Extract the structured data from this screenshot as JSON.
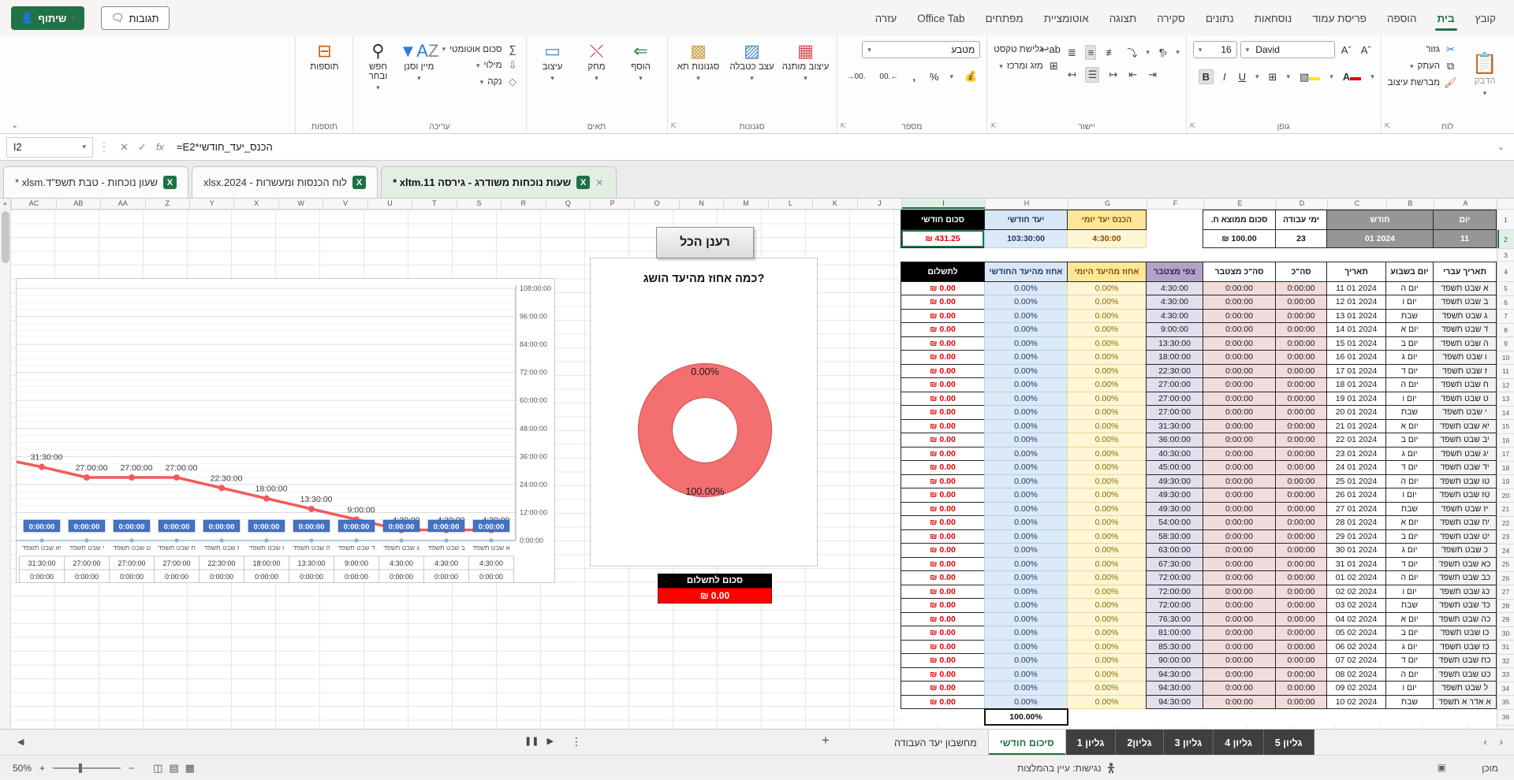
{
  "titlebar": {
    "share_label": "שיתוף",
    "comments_label": "תגובות",
    "tabs": [
      "קובץ",
      "בית",
      "הוספה",
      "פריסת עמוד",
      "נוסחאות",
      "נתונים",
      "סקירה",
      "תצוגה",
      "אוטומציית",
      "מפתחים",
      "Office Tab",
      "עזרה"
    ],
    "active_tab": "בית"
  },
  "ribbon": {
    "paste": "הדבק",
    "cut": "גזור",
    "copy": "העתק",
    "format_painter": "מברשת עיצוב",
    "clipboard_group": "לוח",
    "font_name": "David",
    "font_size": "16",
    "font_group": "גופן",
    "wrap_text": "גלישת טקסט",
    "merge_center": "מזג ומרכז",
    "align_group": "יישור",
    "number_format": "מטבע",
    "number_group": "מספר",
    "cond_format": "עיצוב מותנה",
    "format_table": "עצב כטבלה",
    "cell_styles": "סגנונות תא",
    "styles_group": "סגנונות",
    "insert": "הוסף",
    "delete": "מחק",
    "format": "עיצוב",
    "cells_group": "תאים",
    "autosum": "סכום אוטומטי",
    "fill": "מילוי",
    "clear": "נקה",
    "sort_filter": "מיין וסנן",
    "find_select": "חפש ובחר",
    "editing_group": "עריכה",
    "addins": "תוספות",
    "addins_group": "תוספות"
  },
  "formula_bar": {
    "name_box": "I2",
    "formula": "=E2*הכנס_יעד_חודשי"
  },
  "doc_tabs": [
    {
      "label": "שעון נוכחות - טבת תשפ\"ד.xlsm *",
      "active": false
    },
    {
      "label": "לוח הכנסות ומעשרות - 2024.xlsx",
      "active": false
    },
    {
      "label": "שעות נוכחות משודרג - גירסה 11.xltm *",
      "active": true
    }
  ],
  "sheet": {
    "selected_cell": "I2",
    "summary": {
      "monthly_sum_label": "סכום חודשי",
      "monthly_sum": "₪ 431.25",
      "monthly_target_label": "יעד חודשי",
      "monthly_target": "103:30:00",
      "daily_target_label": "הכנס יעד יומי",
      "daily_target": "4:30:00",
      "avg_label": "סכום ממוצא ח.",
      "avg": "₪ 100.00",
      "workdays_label": "ימי עבודה",
      "workdays": "23",
      "month_label": "חודש",
      "month": "01 2024",
      "day_label": "יום",
      "day": "11"
    },
    "table": {
      "headers": {
        "pay": "לתשלום",
        "pct_month": "אחוז מהיעד החודשי",
        "pct_day": "אחוז מהיעד היומי",
        "forecast": "צפי מצטבר",
        "cum": "סה\"כ מצטבר",
        "total": "סה\"כ",
        "date": "תאריך",
        "dow": "יום בשבוע",
        "heb": "תאריך עברי"
      },
      "row_defaults": {
        "pay": "₪ 0.00",
        "pct_month": "0.00%",
        "pct_day": "0.00%",
        "cum": "0:00:00",
        "total": "0:00:00"
      },
      "rows": [
        {
          "date": "11 01 2024",
          "dow": "יום ה",
          "heb": "א שבט תשפד",
          "forecast": "4:30:00"
        },
        {
          "date": "12 01 2024",
          "dow": "יום ו",
          "heb": "ב שבט תשפד",
          "forecast": "4:30:00"
        },
        {
          "date": "13 01 2024",
          "dow": "שבת",
          "heb": "ג שבט תשפד",
          "forecast": "4:30:00"
        },
        {
          "date": "14 01 2024",
          "dow": "יום א",
          "heb": "ד שבט תשפד",
          "forecast": "9:00:00"
        },
        {
          "date": "15 01 2024",
          "dow": "יום ב",
          "heb": "ה שבט תשפד",
          "forecast": "13:30:00"
        },
        {
          "date": "16 01 2024",
          "dow": "יום ג",
          "heb": "ו שבט תשפד",
          "forecast": "18:00:00"
        },
        {
          "date": "17 01 2024",
          "dow": "יום ד",
          "heb": "ז שבט תשפד",
          "forecast": "22:30:00"
        },
        {
          "date": "18 01 2024",
          "dow": "יום ה",
          "heb": "ח שבט תשפד",
          "forecast": "27:00:00"
        },
        {
          "date": "19 01 2024",
          "dow": "יום ו",
          "heb": "ט שבט תשפד",
          "forecast": "27:00:00"
        },
        {
          "date": "20 01 2024",
          "dow": "שבת",
          "heb": "י שבט תשפד",
          "forecast": "27:00:00"
        },
        {
          "date": "21 01 2024",
          "dow": "יום א",
          "heb": "יא שבט תשפד",
          "forecast": "31:30:00"
        },
        {
          "date": "22 01 2024",
          "dow": "יום ב",
          "heb": "יב שבט תשפד",
          "forecast": "36:00:00"
        },
        {
          "date": "23 01 2024",
          "dow": "יום ג",
          "heb": "יג שבט תשפד",
          "forecast": "40:30:00"
        },
        {
          "date": "24 01 2024",
          "dow": "יום ד",
          "heb": "יד שבט תשפד",
          "forecast": "45:00:00"
        },
        {
          "date": "25 01 2024",
          "dow": "יום ה",
          "heb": "טו שבט תשפד",
          "forecast": "49:30:00"
        },
        {
          "date": "26 01 2024",
          "dow": "יום ו",
          "heb": "טז שבט תשפד",
          "forecast": "49:30:00"
        },
        {
          "date": "27 01 2024",
          "dow": "שבת",
          "heb": "יז שבט תשפד",
          "forecast": "49:30:00"
        },
        {
          "date": "28 01 2024",
          "dow": "יום א",
          "heb": "יח שבט תשפד",
          "forecast": "54:00:00"
        },
        {
          "date": "29 01 2024",
          "dow": "יום ב",
          "heb": "יט שבט תשפד",
          "forecast": "58:30:00"
        },
        {
          "date": "30 01 2024",
          "dow": "יום ג",
          "heb": "כ שבט תשפד",
          "forecast": "63:00:00"
        },
        {
          "date": "31 01 2024",
          "dow": "יום ד",
          "heb": "כא שבט תשפד",
          "forecast": "67:30:00"
        },
        {
          "date": "01 02 2024",
          "dow": "יום ה",
          "heb": "כב שבט תשפד",
          "forecast": "72:00:00"
        },
        {
          "date": "02 02 2024",
          "dow": "יום ו",
          "heb": "כג שבט תשפד",
          "forecast": "72:00:00"
        },
        {
          "date": "03 02 2024",
          "dow": "שבת",
          "heb": "כד שבט תשפד",
          "forecast": "72:00:00"
        },
        {
          "date": "04 02 2024",
          "dow": "יום א",
          "heb": "כה שבט תשפד",
          "forecast": "76:30:00"
        },
        {
          "date": "05 02 2024",
          "dow": "יום ב",
          "heb": "כו שבט תשפד",
          "forecast": "81:00:00"
        },
        {
          "date": "06 02 2024",
          "dow": "יום ג",
          "heb": "כז שבט תשפד",
          "forecast": "85:30:00"
        },
        {
          "date": "07 02 2024",
          "dow": "יום ד",
          "heb": "כח שבט תשפד",
          "forecast": "90:00:00"
        },
        {
          "date": "08 02 2024",
          "dow": "יום ה",
          "heb": "כט שבט תשפד",
          "forecast": "94:30:00"
        },
        {
          "date": "09 02 2024",
          "dow": "יום ו",
          "heb": "ל שבט תשפד",
          "forecast": "94:30:00"
        },
        {
          "date": "10 02 2024",
          "dow": "שבת",
          "heb": "א אדר א תשפד",
          "forecast": "94:30:00"
        }
      ],
      "footer_pct": "100.00%"
    },
    "refresh_button": "רענן הכל",
    "pay_box": {
      "label": "סכום לתשלום",
      "value": "₪ 0.00"
    }
  },
  "chart_data": [
    {
      "type": "line",
      "title": "",
      "categories": [
        "יא שבט תשפד",
        "י שבט תשפד",
        "ט שבט תשפד",
        "ח שבט תשפד",
        "ז שבט תשפד",
        "ו שבט תשפד",
        "ה שבט תשפד",
        "ד שבט תשפד",
        "ג שבט תשפד",
        "ב שבט תשפד",
        "א שבט תשפד"
      ],
      "series": [
        {
          "name": "צפי מצטבר",
          "color": "#F25A5A",
          "values_hours": [
            31.5,
            27,
            27,
            27,
            22.5,
            18,
            13.5,
            9,
            4.5,
            4.5,
            4.5
          ],
          "labels": [
            "31:30:00",
            "27:00:00",
            "27:00:00",
            "27:00:00",
            "22:30:00",
            "18:00:00",
            "13:30:00",
            "9:00:00",
            "4:30:00",
            "4:30:00",
            "4:30:00"
          ]
        },
        {
          "name": "סה\"כ מצטבר",
          "color": "#4472C4",
          "values_hours": [
            0,
            0,
            0,
            0,
            0,
            0,
            0,
            0,
            0,
            0,
            0
          ],
          "labels": [
            "0:00:00",
            "0:00:00",
            "0:00:00",
            "0:00:00",
            "0:00:00",
            "0:00:00",
            "0:00:00",
            "0:00:00",
            "0:00:00",
            "0:00:00",
            "0:00:00"
          ]
        }
      ],
      "yticks": [
        "108:00:00",
        "96:00:00",
        "84:00:00",
        "72:00:00",
        "60:00:00",
        "48:00:00",
        "36:00:00",
        "24:00:00",
        "12:00:00",
        "0:00:00"
      ],
      "ylim_hours": [
        0,
        108
      ],
      "grid": true,
      "data_table": true,
      "axis_side": "right"
    },
    {
      "type": "pie",
      "subtype": "donut",
      "title": "כמה אחוז מהיעד הושג?",
      "slices": [
        {
          "label": "0.00%",
          "value": 0
        },
        {
          "label": "100.00%",
          "value": 100
        }
      ],
      "color": "#F47070",
      "legend": "none"
    }
  ],
  "sheet_tabs": {
    "back_arrow": "◀",
    "tabs": [
      {
        "label": "מחשבון יעד העבודה",
        "style": "plain"
      },
      {
        "label": "סיכום חודשי",
        "style": "active"
      },
      {
        "label": "גליון 1",
        "style": "dark"
      },
      {
        "label": "גליון2",
        "style": "dark"
      },
      {
        "label": "גליון 3",
        "style": "dark"
      },
      {
        "label": "גליון 4",
        "style": "dark"
      },
      {
        "label": "גליון 5",
        "style": "dark"
      }
    ],
    "add_label": "+"
  },
  "status_bar": {
    "ready": "מוכן",
    "accessibility": "נגישות: עיין בהמלצות",
    "zoom": "50%"
  },
  "colors": {
    "accent_green": "#217346",
    "donut": "#F47070",
    "line_red": "#F25A5A",
    "line_blue": "#4472C4",
    "label_box_blue": "#4472C4",
    "pay_red": "#FF0000",
    "footer_red": "#FF5B5B"
  }
}
